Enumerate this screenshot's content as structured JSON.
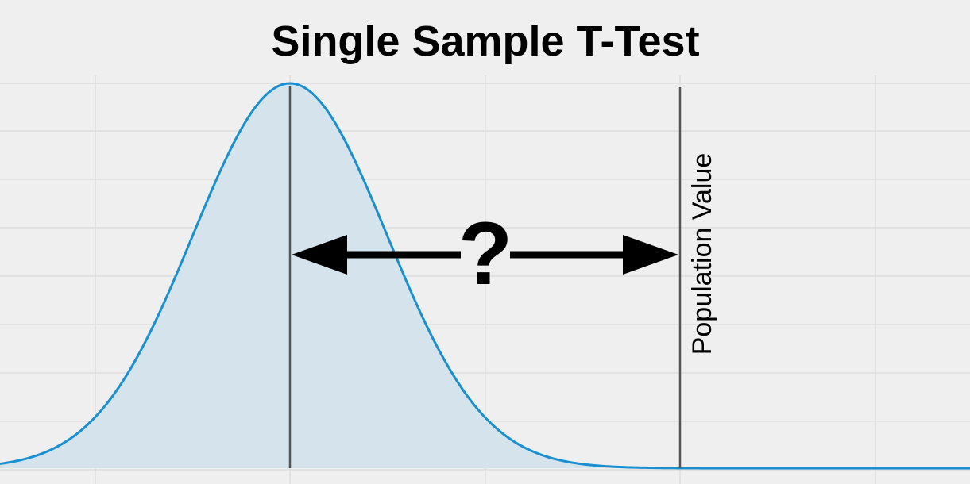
{
  "title": "Single Sample T-Test",
  "arrow_label": "?",
  "reference_label": "Population Value"
}
